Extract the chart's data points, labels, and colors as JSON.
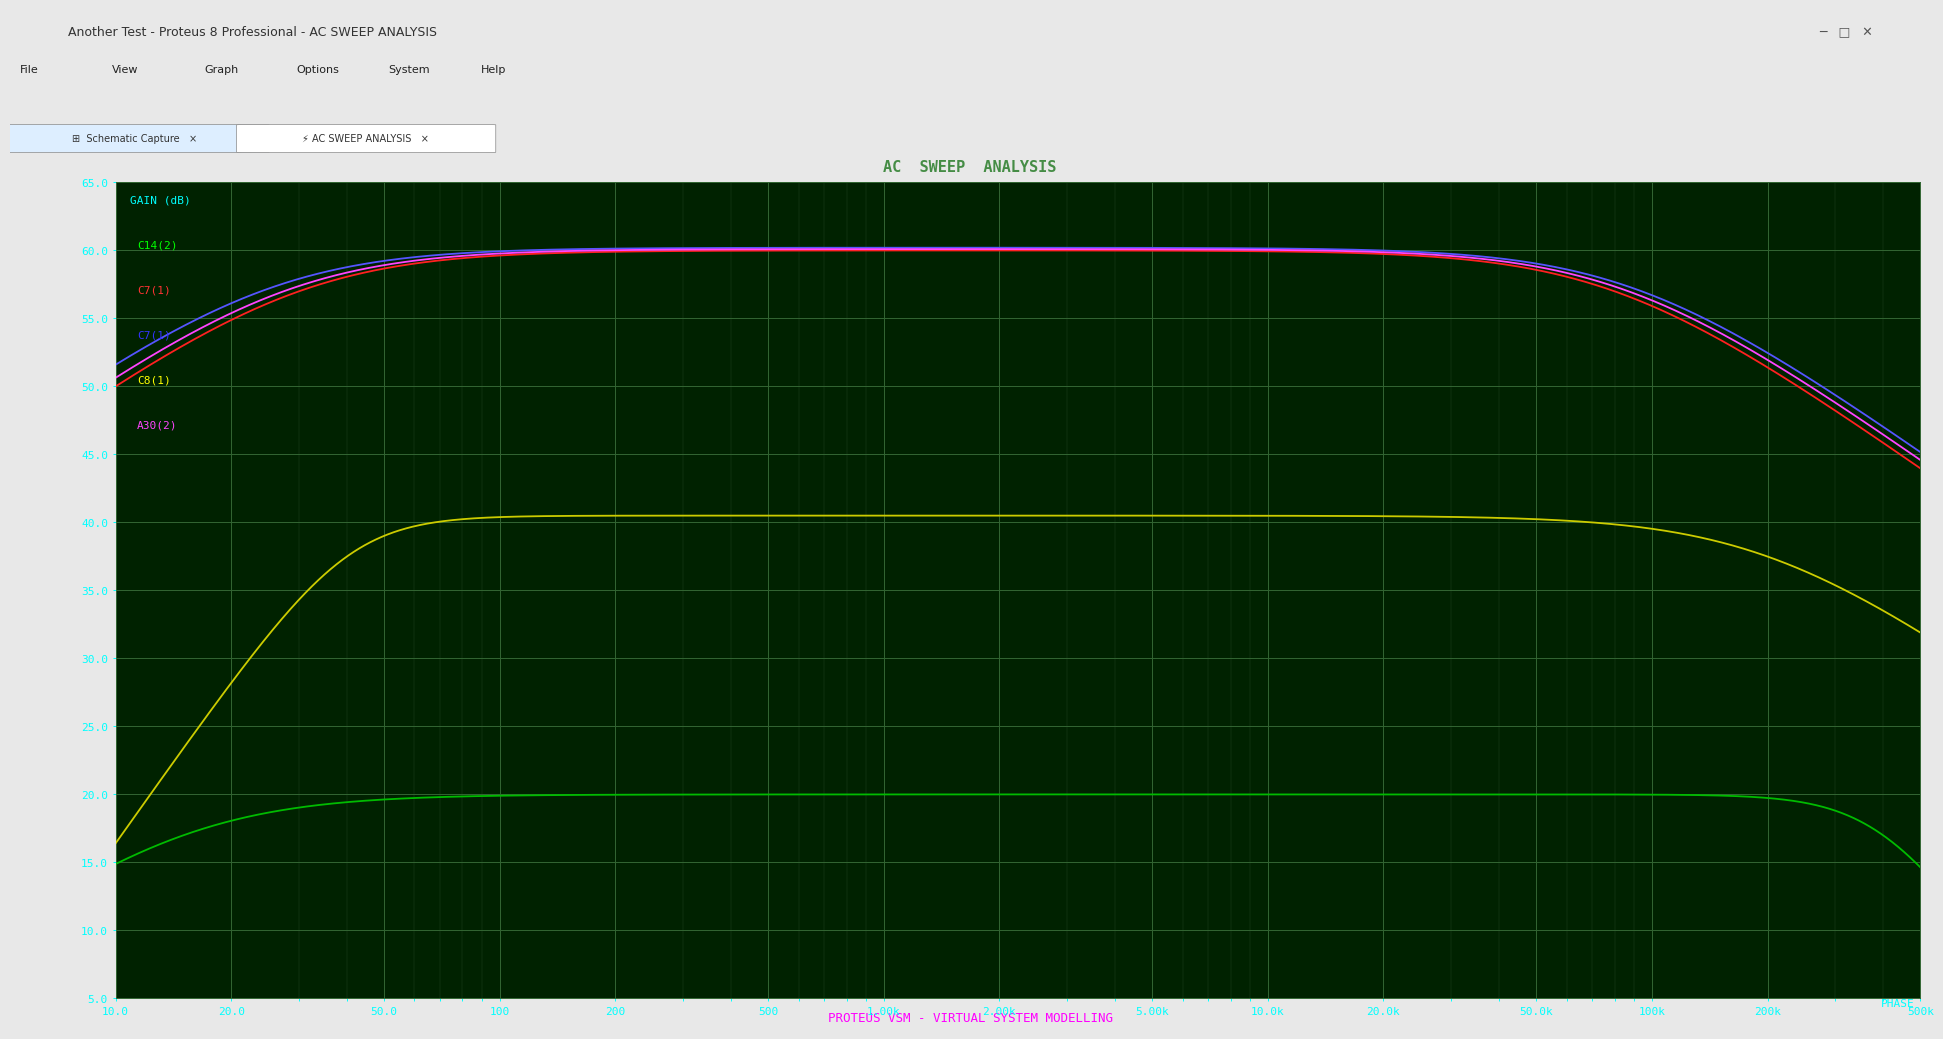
{
  "title": "AC SWEEP ANALYSIS",
  "ylabel": "GAIN (dB)",
  "xlabel": "PHASE",
  "win_title": "Another Test - Proteus 8 Professional - AC SWEEP ANALYSIS",
  "bg_color": "#f0f0f0",
  "plot_bg_color": "#002200",
  "grid_color": "#004400",
  "axis_label_color": "#00ffff",
  "title_bar_color": "#44dd00",
  "title_text_color": "#33aa00",
  "bottom_text": "PROTEUS VSM - VIRTUAL SYSTEM MODELLING",
  "bottom_text_color": "#ff00ff",
  "tab_bg": "#d0e8f0",
  "ymin": 5.0,
  "ymax": 65.0,
  "yticks": [
    5.0,
    10.0,
    15.0,
    20.0,
    25.0,
    30.0,
    35.0,
    40.0,
    45.0,
    50.0,
    55.0,
    60.0,
    65.0
  ],
  "freq_min": 10,
  "freq_max": 500000,
  "legend_labels": [
    "C14(2)",
    "C7(1)",
    "C7(1)",
    "C8(1)",
    "A30(2)"
  ],
  "legend_colors": [
    "#00ff00",
    "#ff3333",
    "#3333ff",
    "#ffff00",
    "#ff44ff"
  ],
  "curve_colors": [
    "#00bb00",
    "#ff2020",
    "#5555ff",
    "#cccc00",
    "#ff44ff"
  ],
  "xtick_labels": [
    "10.0",
    "20.0",
    "50.0",
    "100",
    "200",
    "500",
    "1.00k",
    "2.00k",
    "5.00k",
    "10.0k",
    "20.0k",
    "50.0k",
    "100k",
    "200k",
    "500k"
  ],
  "xtick_freqs": [
    10,
    20,
    50,
    100,
    200,
    500,
    1000,
    2000,
    5000,
    10000,
    20000,
    50000,
    100000,
    200000,
    500000
  ],
  "menu_items": [
    "File",
    "View",
    "Graph",
    "Options",
    "System",
    "Help"
  ]
}
